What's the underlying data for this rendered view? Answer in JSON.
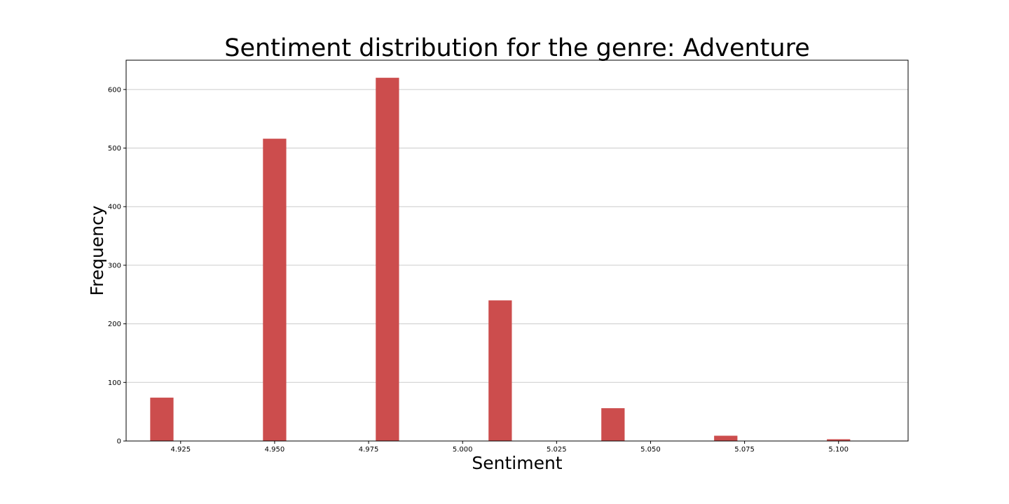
{
  "chart_data": {
    "type": "bar",
    "title": "Sentiment distribution for the genre: Adventure",
    "xlabel": "Sentiment",
    "ylabel": "Frequency",
    "xlim": [
      4.9105,
      5.1185
    ],
    "ylim": [
      0,
      650
    ],
    "bar_width": 0.01,
    "x": [
      4.92,
      4.95,
      4.98,
      5.01,
      5.04,
      5.07,
      5.1
    ],
    "values": [
      74,
      516,
      620,
      240,
      56,
      9,
      3
    ],
    "x_ticks": [
      4.925,
      4.95,
      4.975,
      5.0,
      5.025,
      5.05,
      5.075,
      5.1
    ],
    "x_tick_labels": [
      "4.925",
      "4.950",
      "4.975",
      "5.000",
      "5.025",
      "5.050",
      "5.075",
      "5.100"
    ],
    "y_ticks": [
      0,
      100,
      200,
      300,
      400,
      500,
      600
    ],
    "y_tick_labels": [
      "0",
      "100",
      "200",
      "300",
      "400",
      "500",
      "600"
    ],
    "grid": "y-axis horizontal lines",
    "colors": {
      "bar": "#cc4d4d",
      "grid": "#cccccc",
      "frame": "#000000"
    }
  }
}
